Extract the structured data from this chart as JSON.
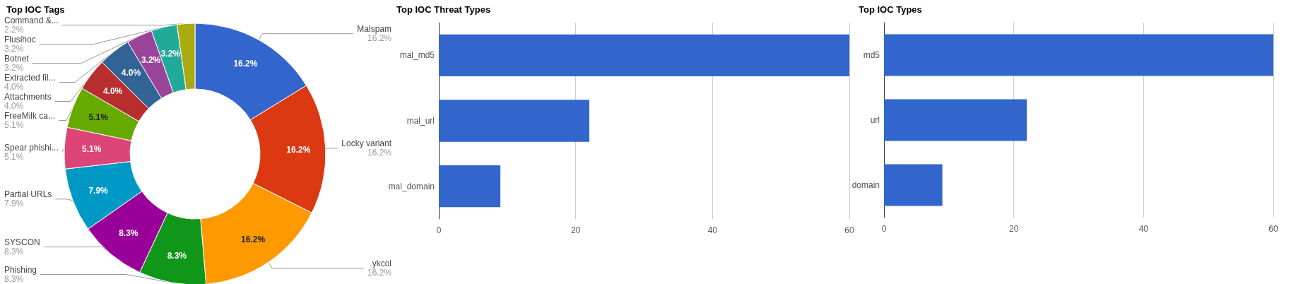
{
  "chart_data": [
    {
      "type": "donut",
      "title": "Top IOC Tags",
      "categories": [
        "Malspam",
        "Locky variant",
        ".ykcol",
        "Phishing",
        "SYSCON",
        "Partial URLs",
        "Spear phishi...",
        "FreeMilk ca...",
        "Attachments",
        "Extracted fil...",
        "Botnet",
        "Flusihoc",
        "Command &..."
      ],
      "values": [
        16.2,
        16.2,
        16.2,
        8.3,
        8.3,
        7.9,
        5.1,
        5.1,
        4.0,
        4.0,
        3.2,
        3.2,
        2.2
      ],
      "value_labels": [
        "16.2%",
        "16.2%",
        "16.2%",
        "8.3%",
        "8.3%",
        "7.9%",
        "5.1%",
        "5.1%",
        "4.0%",
        "4.0%",
        "3.2%",
        "3.2%",
        "2.2%"
      ],
      "colors": [
        "#3366cc",
        "#dc3912",
        "#ff9900",
        "#109618",
        "#990099",
        "#0099c6",
        "#dd4477",
        "#66aa00",
        "#b82e2e",
        "#316395",
        "#994499",
        "#22aa99",
        "#aaaa11"
      ],
      "legend": false
    },
    {
      "type": "bar",
      "orientation": "horizontal",
      "title": "Top IOC Threat Types",
      "categories": [
        "mal_md5",
        "mal_url",
        "mal_domain"
      ],
      "values": [
        60,
        22,
        9
      ],
      "color": "#3366cc",
      "xlim": [
        0,
        60
      ],
      "xticks": [
        0,
        20,
        40,
        60
      ],
      "grid": "x"
    },
    {
      "type": "bar",
      "orientation": "horizontal",
      "title": "Top IOC Types",
      "categories": [
        "md5",
        "url",
        "domain"
      ],
      "values": [
        60,
        22,
        9
      ],
      "color": "#3366cc",
      "xlim": [
        0,
        60
      ],
      "xticks": [
        0,
        20,
        40,
        60
      ],
      "grid": "x"
    }
  ]
}
